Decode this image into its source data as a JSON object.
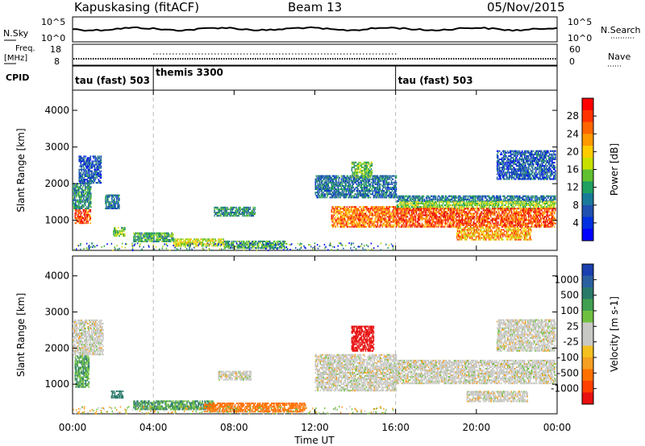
{
  "header": {
    "station": "Kapuskasing (fitACF)",
    "beam": "Beam 13",
    "date": "05/Nov/2015"
  },
  "top_panels": {
    "nsky": {
      "label": "N.Sky",
      "ticks": [
        "10^5",
        "10^0"
      ],
      "right_label": "N.Search",
      "right_ticks": [
        "10^5",
        "10^0"
      ]
    },
    "freq": {
      "label": "Freq.",
      "unit": "[MHz]",
      "ticks": [
        "18",
        "8"
      ],
      "right_label": "Nave",
      "right_ticks": [
        "60",
        "0"
      ]
    },
    "cpid": {
      "label": "CPID",
      "segments": [
        {
          "name": "tau (fast) 503",
          "start_h": 0,
          "end_h": 4
        },
        {
          "name": "themis 3300",
          "start_h": 4,
          "end_h": 16
        },
        {
          "name": "tau (fast) 503",
          "start_h": 16,
          "end_h": 24
        }
      ]
    }
  },
  "chart_data": [
    {
      "type": "heatmap",
      "title": "",
      "xlabel": "Time UT",
      "ylabel": "Slant Range [km]",
      "xlim": [
        0,
        24
      ],
      "ylim": [
        180,
        4550
      ],
      "x_ticks": [
        "00:00",
        "04:00",
        "08:00",
        "12:00",
        "16:00",
        "20:00",
        "00:00"
      ],
      "y_ticks": [
        1000,
        2000,
        3000,
        4000
      ],
      "colorbar": {
        "label": "Power [dB]",
        "ticks": [
          "28",
          "24",
          "20",
          "16",
          "12",
          "8",
          "4"
        ],
        "range": [
          0,
          31
        ]
      },
      "regions": [
        {
          "t0": 0.1,
          "t1": 0.9,
          "r0": 900,
          "r1": 1300,
          "level": 26
        },
        {
          "t0": 0.0,
          "t1": 0.9,
          "r0": 1300,
          "r1": 2000,
          "level": 10
        },
        {
          "t0": 0.3,
          "t1": 1.4,
          "r0": 2000,
          "r1": 2750,
          "level": 6
        },
        {
          "t0": 1.6,
          "t1": 2.3,
          "r0": 1300,
          "r1": 1700,
          "level": 8
        },
        {
          "t0": 2.0,
          "t1": 2.6,
          "r0": 550,
          "r1": 800,
          "level": 14
        },
        {
          "t0": 3.0,
          "t1": 5.0,
          "r0": 400,
          "r1": 650,
          "level": 12
        },
        {
          "t0": 5.0,
          "t1": 7.5,
          "r0": 280,
          "r1": 480,
          "level": 18
        },
        {
          "t0": 7.0,
          "t1": 9.0,
          "r0": 1100,
          "r1": 1350,
          "level": 10
        },
        {
          "t0": 7.5,
          "t1": 10.5,
          "r0": 220,
          "r1": 420,
          "level": 12
        },
        {
          "t0": 12.0,
          "t1": 16.0,
          "r0": 1600,
          "r1": 2200,
          "level": 8
        },
        {
          "t0": 12.8,
          "t1": 16.0,
          "r0": 800,
          "r1": 1350,
          "level": 24
        },
        {
          "t0": 13.8,
          "t1": 14.8,
          "r0": 2150,
          "r1": 2600,
          "level": 14
        },
        {
          "t0": 16.0,
          "t1": 23.9,
          "r0": 1500,
          "r1": 1650,
          "level": 8
        },
        {
          "t0": 16.0,
          "t1": 23.9,
          "r0": 1300,
          "r1": 1500,
          "level": 16
        },
        {
          "t0": 16.0,
          "t1": 23.9,
          "r0": 800,
          "r1": 1300,
          "level": 26
        },
        {
          "t0": 19.0,
          "t1": 22.7,
          "r0": 450,
          "r1": 800,
          "level": 22
        },
        {
          "t0": 21.0,
          "t1": 23.9,
          "r0": 2100,
          "r1": 2900,
          "level": 6
        }
      ]
    },
    {
      "type": "heatmap",
      "title": "",
      "xlabel": "Time UT",
      "ylabel": "Slant Range [km]",
      "xlim": [
        0,
        24
      ],
      "ylim": [
        180,
        4550
      ],
      "x_ticks": [
        "00:00",
        "04:00",
        "08:00",
        "12:00",
        "16:00",
        "20:00",
        "00:00"
      ],
      "y_ticks": [
        1000,
        2000,
        3000,
        4000
      ],
      "colorbar": {
        "label": "Velocity [m s-1]",
        "ticks": [
          "1000",
          "500",
          "100",
          "25",
          "-25",
          "-100",
          "-500",
          "-1000"
        ],
        "range": [
          -1000,
          1000
        ]
      },
      "regions": [
        {
          "t0": 0.1,
          "t1": 0.8,
          "r0": 900,
          "r1": 1800,
          "level": 100
        },
        {
          "t0": 0.0,
          "t1": 1.5,
          "r0": 1800,
          "r1": 2750,
          "level": 0
        },
        {
          "t0": 1.9,
          "t1": 2.5,
          "r0": 600,
          "r1": 800,
          "level": 150
        },
        {
          "t0": 3.0,
          "t1": 7.0,
          "r0": 280,
          "r1": 550,
          "level": 100
        },
        {
          "t0": 6.5,
          "t1": 11.5,
          "r0": 220,
          "r1": 450,
          "level": -150
        },
        {
          "t0": 7.2,
          "t1": 8.8,
          "r0": 1100,
          "r1": 1350,
          "level": 0
        },
        {
          "t0": 12.0,
          "t1": 16.0,
          "r0": 800,
          "r1": 1800,
          "level": 0
        },
        {
          "t0": 13.8,
          "t1": 14.9,
          "r0": 1900,
          "r1": 2600,
          "level": -700
        },
        {
          "t0": 16.0,
          "t1": 23.9,
          "r0": 1000,
          "r1": 1650,
          "level": 0
        },
        {
          "t0": 19.5,
          "t1": 22.5,
          "r0": 500,
          "r1": 800,
          "level": 0
        },
        {
          "t0": 21.0,
          "t1": 23.9,
          "r0": 1900,
          "r1": 2800,
          "level": 0
        }
      ]
    }
  ]
}
